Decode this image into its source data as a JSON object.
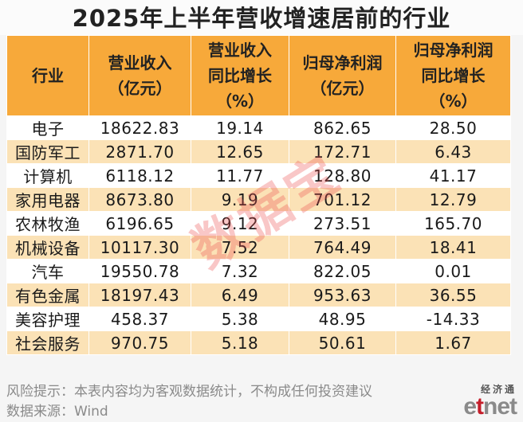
{
  "title": "2025年上半年营收增速居前的行业",
  "table": {
    "headers": [
      [
        "行业"
      ],
      [
        "营业收入",
        "（亿元）"
      ],
      [
        "营业收入",
        "同比增长",
        "（%）"
      ],
      [
        "归母净利润",
        "（亿元）"
      ],
      [
        "归母净利润",
        "同比增长",
        "（%）"
      ]
    ],
    "rows": [
      [
        "电子",
        "18622.83",
        "19.14",
        "862.65",
        "28.50"
      ],
      [
        "国防军工",
        "2871.70",
        "12.65",
        "172.71",
        "6.43"
      ],
      [
        "计算机",
        "6118.12",
        "11.77",
        "128.80",
        "41.17"
      ],
      [
        "家用电器",
        "8673.80",
        "9.19",
        "701.12",
        "12.79"
      ],
      [
        "农林牧渔",
        "6196.65",
        "9.12",
        "273.51",
        "165.70"
      ],
      [
        "机械设备",
        "10117.30",
        "7.52",
        "764.49",
        "18.41"
      ],
      [
        "汽车",
        "19550.78",
        "7.32",
        "822.05",
        "0.01"
      ],
      [
        "有色金属",
        "18197.43",
        "6.49",
        "953.63",
        "36.55"
      ],
      [
        "美容护理",
        "458.37",
        "5.38",
        "48.95",
        "-14.33"
      ],
      [
        "社会服务",
        "970.75",
        "5.18",
        "50.61",
        "1.67"
      ]
    ]
  },
  "watermark": "数据宝",
  "footer": {
    "risk_note": "风险提示：本表内容均为客观数据统计，不构成任何投资建议",
    "source": "数据来源：Wind"
  },
  "brand": {
    "cn": "经济通",
    "en_e": "e",
    "en_t": "t",
    "en_net": "net"
  },
  "colors": {
    "header_bg": "#f7a93a",
    "stripe_bg": "#fbe2b6",
    "brand_red": "#c41e2a"
  }
}
